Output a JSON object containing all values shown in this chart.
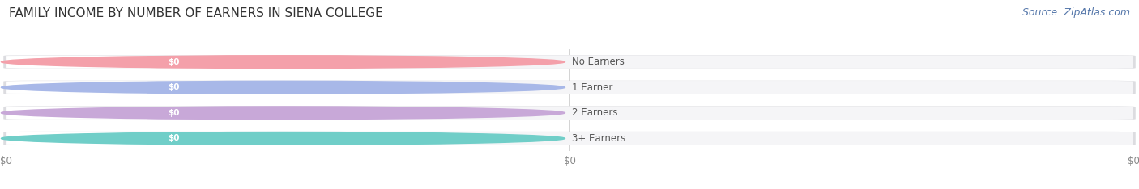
{
  "title": "FAMILY INCOME BY NUMBER OF EARNERS IN SIENA COLLEGE",
  "source": "Source: ZipAtlas.com",
  "categories": [
    "No Earners",
    "1 Earner",
    "2 Earners",
    "3+ Earners"
  ],
  "values": [
    0,
    0,
    0,
    0
  ],
  "bar_colors": [
    "#f4a0aa",
    "#a8b8e8",
    "#c8a8d8",
    "#70cec8"
  ],
  "bar_bg_color": "#f0f0f2",
  "bar_outer_color": "#e8e8ec",
  "value_labels": [
    "$0",
    "$0",
    "$0",
    "$0"
  ],
  "background_color": "#ffffff",
  "title_fontsize": 11,
  "source_fontsize": 9,
  "figsize": [
    14.06,
    2.34
  ],
  "dpi": 100
}
